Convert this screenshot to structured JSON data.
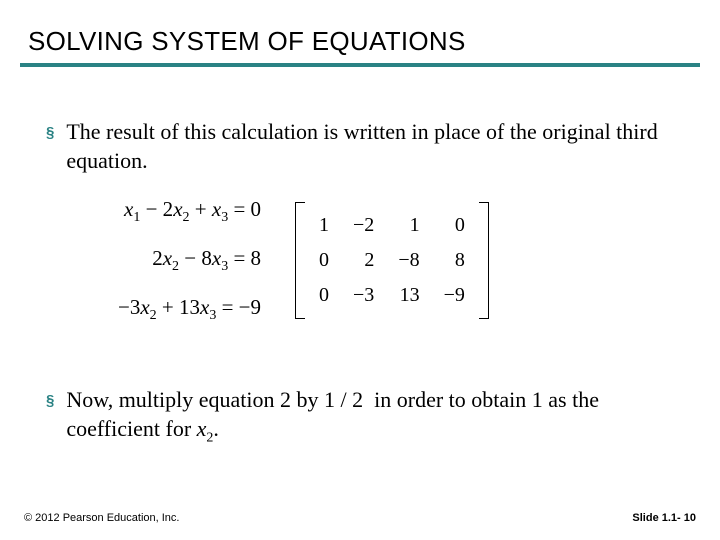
{
  "title": "SOLVING SYSTEM OF EQUATIONS",
  "accent_color": "#2a8284",
  "bullets": {
    "b1": "The result of this calculation is written in place of the original third equation.",
    "b2_pre": "Now, multiply equation 2 by ",
    "b2_mid": "1 / 2",
    "b2_post": " in order to obtain 1 as the coefficient for ",
    "b2_var": "x",
    "b2_sub": "2",
    "b2_end": "."
  },
  "equations": {
    "rows": [
      {
        "cells": [
          "1",
          "−2",
          "1",
          "0"
        ]
      },
      {
        "cells": [
          "0",
          "2",
          "−8",
          "8"
        ]
      },
      {
        "cells": [
          "0",
          "−3",
          "13",
          "−9"
        ]
      }
    ]
  },
  "footer": {
    "copyright": "© 2012 Pearson Education, Inc.",
    "slide": "Slide 1.1- 10"
  }
}
